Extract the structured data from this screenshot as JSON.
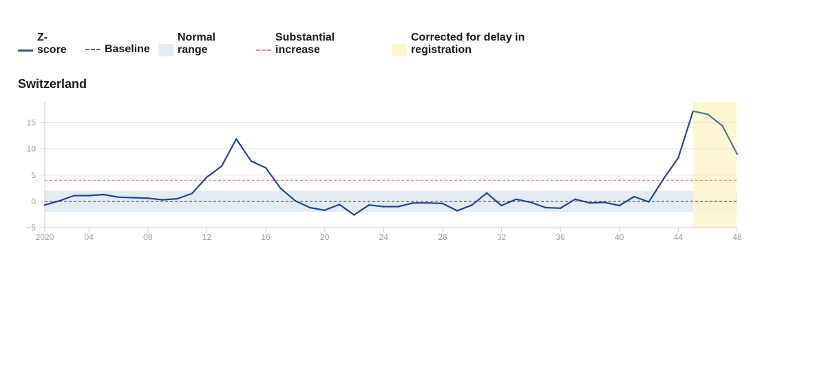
{
  "legend": {
    "zscore": {
      "line1": "Z-",
      "line2": "score"
    },
    "baseline": {
      "line1": "Baseline"
    },
    "normal_range": {
      "line1": "Normal",
      "line2": "range"
    },
    "substantial_increase": {
      "line1": "Substantial",
      "line2": "increase"
    },
    "corrected": {
      "line1": "Corrected for delay in",
      "line2": "registration"
    }
  },
  "colors": {
    "zscore_line": "#1f4596",
    "corrected_line": "#5a7394",
    "baseline": "#555555",
    "normal_range": "#e4ebf3",
    "substantial_increase": "#ee8c8c",
    "corrected_band": "#fdf6cc"
  },
  "chart_data": {
    "type": "line",
    "title": "Switzerland",
    "xlabel": "",
    "ylabel": "",
    "x_ticks": [
      {
        "week": 1,
        "label": "2020"
      },
      {
        "week": 4,
        "label": "04"
      },
      {
        "week": 8,
        "label": "08"
      },
      {
        "week": 12,
        "label": "12"
      },
      {
        "week": 16,
        "label": "16"
      },
      {
        "week": 20,
        "label": "20"
      },
      {
        "week": 24,
        "label": "24"
      },
      {
        "week": 28,
        "label": "28"
      },
      {
        "week": 32,
        "label": "32"
      },
      {
        "week": 36,
        "label": "36"
      },
      {
        "week": 40,
        "label": "40"
      },
      {
        "week": 44,
        "label": "44"
      },
      {
        "week": 48,
        "label": "48"
      }
    ],
    "y_ticks": [
      -5,
      0,
      5,
      10,
      15
    ],
    "xlim": [
      1,
      48
    ],
    "ylim": [
      -5,
      19
    ],
    "baseline": 0,
    "normal_range": [
      -2,
      2
    ],
    "substantial_increase_threshold": 4,
    "corrected_weeks": [
      45,
      48
    ],
    "grid": "horizontal",
    "series": [
      {
        "x": [
          1,
          2,
          3,
          4,
          5,
          6,
          7,
          8,
          9,
          10,
          11,
          12,
          13,
          14,
          15,
          16,
          17,
          18,
          19,
          20,
          21,
          22,
          23,
          24,
          25,
          26,
          27,
          28,
          29,
          30,
          31,
          32,
          33,
          34,
          35,
          36,
          37,
          38,
          39,
          40,
          41,
          42,
          43,
          44,
          45,
          46,
          47,
          48
        ],
        "values": [
          -0.7,
          0.1,
          1.1,
          1.1,
          1.3,
          0.8,
          0.7,
          0.6,
          0.3,
          0.5,
          1.5,
          4.6,
          6.7,
          11.9,
          7.7,
          6.4,
          2.5,
          0.1,
          -1.2,
          -1.7,
          -0.6,
          -2.6,
          -0.7,
          -1.0,
          -1.0,
          -0.3,
          -0.3,
          -0.4,
          -1.8,
          -0.7,
          1.6,
          -0.8,
          0.4,
          -0.2,
          -1.2,
          -1.3,
          0.4,
          -0.3,
          -0.2,
          -0.8,
          0.9,
          -0.1,
          4.3,
          8.3,
          17.2,
          16.6,
          14.4,
          9.0
        ]
      }
    ]
  }
}
